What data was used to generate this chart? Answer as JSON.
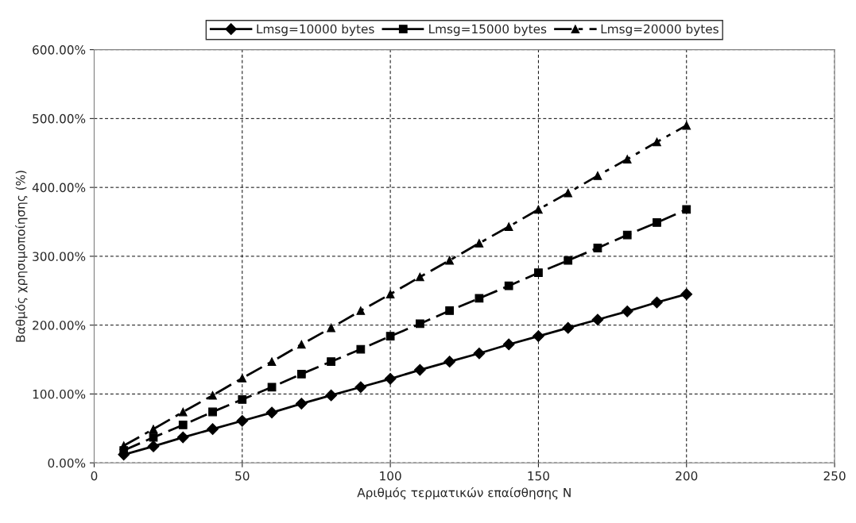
{
  "chart_data": {
    "type": "line",
    "xlabel": "Αριθμός τερματικών επαίσθησης Ν",
    "ylabel": "Βαθμός χρησιμοποίησης (%)",
    "x": [
      10,
      20,
      30,
      40,
      50,
      60,
      70,
      80,
      90,
      100,
      110,
      120,
      130,
      140,
      150,
      160,
      170,
      180,
      190,
      200
    ],
    "series": [
      {
        "name": "Lmsg=10000 bytes",
        "color": "#000000",
        "marker": "diamond",
        "line_style": "solid",
        "values": [
          12,
          24,
          37,
          49,
          61,
          73,
          86,
          98,
          110,
          122,
          135,
          147,
          159,
          172,
          184,
          196,
          208,
          220,
          233,
          245
        ]
      },
      {
        "name": "Lmsg=15000 bytes",
        "color": "#000000",
        "marker": "square",
        "line_style": "dashed",
        "values": [
          18,
          37,
          55,
          74,
          92,
          110,
          129,
          147,
          165,
          184,
          202,
          221,
          239,
          257,
          276,
          294,
          312,
          331,
          349,
          368
        ]
      },
      {
        "name": "Lmsg=20000 bytes",
        "color": "#000000",
        "marker": "triangle",
        "line_style": "dashdot",
        "values": [
          25,
          49,
          74,
          98,
          123,
          147,
          172,
          196,
          221,
          245,
          270,
          294,
          319,
          343,
          368,
          392,
          417,
          441,
          466,
          490
        ]
      }
    ],
    "xlim": [
      0,
      250
    ],
    "xticks": [
      0,
      50,
      100,
      150,
      200,
      250
    ],
    "ylim": [
      0,
      600
    ],
    "yticks": [
      {
        "value": 0,
        "label": "0.00%"
      },
      {
        "value": 100,
        "label": "100.00%"
      },
      {
        "value": 200,
        "label": "200.00%"
      },
      {
        "value": 300,
        "label": "300.00%"
      },
      {
        "value": 400,
        "label": "400.00%"
      },
      {
        "value": 500,
        "label": "500.00%"
      },
      {
        "value": 600,
        "label": "600.00%"
      }
    ],
    "grid": true,
    "legend": "top"
  }
}
